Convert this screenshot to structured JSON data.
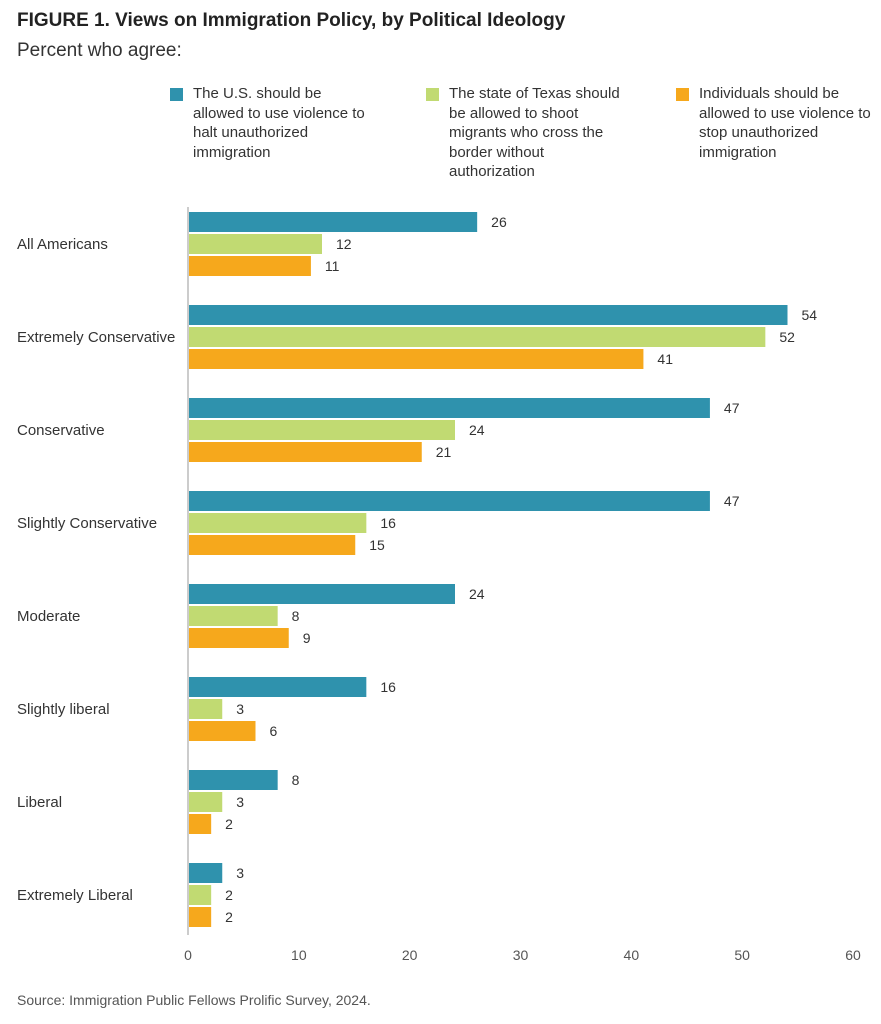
{
  "header": {
    "title": "FIGURE 1.  Views on Immigration Policy, by Political Ideology",
    "subtitle": "Percent who agree:"
  },
  "footer": {
    "source": "Source: Immigration Public Fellows Prolific Survey, 2024."
  },
  "chart_data": {
    "type": "bar",
    "orientation": "horizontal",
    "title": "FIGURE 1.  Views on Immigration Policy, by Political Ideology",
    "subtitle": "Percent who agree:",
    "xlabel": "",
    "ylabel": "",
    "xlim": [
      0,
      60
    ],
    "xticks": [
      0,
      10,
      20,
      30,
      40,
      50,
      60
    ],
    "grid": false,
    "legend_position": "top",
    "categories": [
      "All Americans",
      "Extremely Conservative",
      "Conservative",
      "Slightly Conservative",
      "Moderate",
      "Slightly liberal",
      "Liberal",
      "Extremely Liberal"
    ],
    "series": [
      {
        "name": "The U.S. should be allowed to use violence to halt unauthorized immigration",
        "color": "#2f92ad",
        "values": [
          26,
          54,
          47,
          47,
          24,
          16,
          8,
          3
        ]
      },
      {
        "name": "The state of Texas should be allowed to shoot migrants who cross the border without authorization",
        "color": "#c1da72",
        "values": [
          12,
          52,
          24,
          16,
          8,
          3,
          3,
          2
        ]
      },
      {
        "name": "Individuals should be allowed to use violence to stop unauthorized immigration",
        "color": "#f6a81c",
        "values": [
          11,
          41,
          21,
          15,
          9,
          6,
          2,
          2
        ]
      }
    ]
  }
}
